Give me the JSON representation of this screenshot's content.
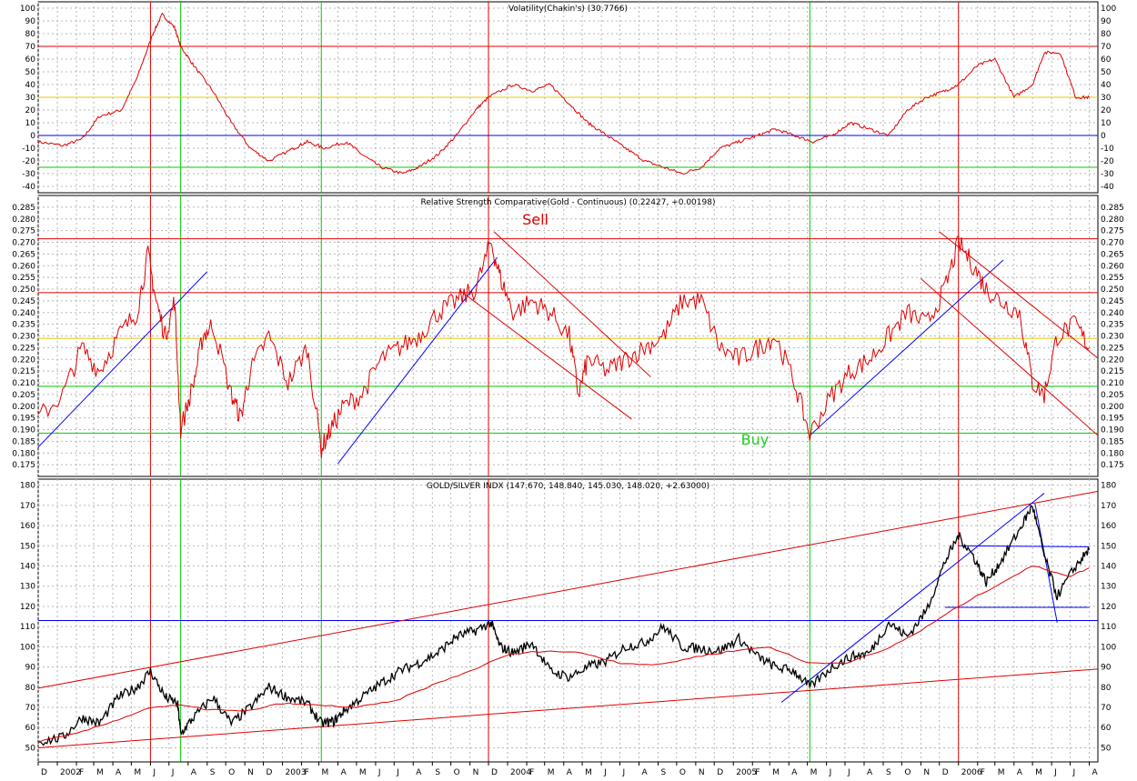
{
  "colors": {
    "background": "#ffffff",
    "grid": "#b8b8b8",
    "red": "#e00000",
    "green": "#00cc00",
    "blue": "#0000ff",
    "yellow": "#e8c800",
    "black": "#000000",
    "sell_text": "#e00000",
    "buy_text": "#22cc22"
  },
  "x_axis": {
    "date_range": [
      "2001-12-01",
      "2006-08-15"
    ],
    "month_ticks": [
      {
        "date": "2001-12-01",
        "label": "D"
      },
      {
        "date": "2002-01-01",
        "label": "2002"
      },
      {
        "date": "2002-02-01",
        "label": "F"
      },
      {
        "date": "2002-03-01",
        "label": "M"
      },
      {
        "date": "2002-04-01",
        "label": "A"
      },
      {
        "date": "2002-05-01",
        "label": "M"
      },
      {
        "date": "2002-06-01",
        "label": "J"
      },
      {
        "date": "2002-07-01",
        "label": "J"
      },
      {
        "date": "2002-08-01",
        "label": "A"
      },
      {
        "date": "2002-09-01",
        "label": "S"
      },
      {
        "date": "2002-10-01",
        "label": "O"
      },
      {
        "date": "2002-11-01",
        "label": "N"
      },
      {
        "date": "2002-12-01",
        "label": "D"
      },
      {
        "date": "2003-01-01",
        "label": "2003"
      },
      {
        "date": "2003-02-01",
        "label": "F"
      },
      {
        "date": "2003-03-01",
        "label": "M"
      },
      {
        "date": "2003-04-01",
        "label": "A"
      },
      {
        "date": "2003-05-01",
        "label": "M"
      },
      {
        "date": "2003-06-01",
        "label": "J"
      },
      {
        "date": "2003-07-01",
        "label": "J"
      },
      {
        "date": "2003-08-01",
        "label": "A"
      },
      {
        "date": "2003-09-01",
        "label": "S"
      },
      {
        "date": "2003-10-01",
        "label": "O"
      },
      {
        "date": "2003-11-01",
        "label": "N"
      },
      {
        "date": "2003-12-01",
        "label": "D"
      },
      {
        "date": "2004-01-01",
        "label": "2004"
      },
      {
        "date": "2004-02-01",
        "label": "F"
      },
      {
        "date": "2004-03-01",
        "label": "M"
      },
      {
        "date": "2004-04-01",
        "label": "A"
      },
      {
        "date": "2004-05-01",
        "label": "M"
      },
      {
        "date": "2004-06-01",
        "label": "J"
      },
      {
        "date": "2004-07-01",
        "label": "J"
      },
      {
        "date": "2004-08-01",
        "label": "A"
      },
      {
        "date": "2004-09-01",
        "label": "S"
      },
      {
        "date": "2004-10-01",
        "label": "O"
      },
      {
        "date": "2004-11-01",
        "label": "N"
      },
      {
        "date": "2004-12-01",
        "label": "D"
      },
      {
        "date": "2005-01-01",
        "label": "2005"
      },
      {
        "date": "2005-02-01",
        "label": "F"
      },
      {
        "date": "2005-03-01",
        "label": "M"
      },
      {
        "date": "2005-04-01",
        "label": "A"
      },
      {
        "date": "2005-05-01",
        "label": "M"
      },
      {
        "date": "2005-06-01",
        "label": "J"
      },
      {
        "date": "2005-07-01",
        "label": "J"
      },
      {
        "date": "2005-08-01",
        "label": "A"
      },
      {
        "date": "2005-09-01",
        "label": "S"
      },
      {
        "date": "2005-10-01",
        "label": "O"
      },
      {
        "date": "2005-11-01",
        "label": "N"
      },
      {
        "date": "2005-12-01",
        "label": "D"
      },
      {
        "date": "2006-01-01",
        "label": "2006"
      },
      {
        "date": "2006-02-01",
        "label": "F"
      },
      {
        "date": "2006-03-01",
        "label": "M"
      },
      {
        "date": "2006-04-01",
        "label": "A"
      },
      {
        "date": "2006-05-01",
        "label": "M"
      },
      {
        "date": "2006-06-01",
        "label": "J"
      },
      {
        "date": "2006-07-01",
        "label": "J"
      },
      {
        "date": "2006-08-01",
        "label": "A"
      }
    ]
  },
  "markers": {
    "red_vertical_dates": [
      "2002-06-01",
      "2003-12-01",
      "2006-01-01"
    ],
    "green_vertical_dates": [
      "2002-07-20",
      "2003-03-05",
      "2005-05-05"
    ]
  },
  "chart_data": [
    {
      "type": "line",
      "title": "Volatility(Chakin's) (30.7766)",
      "ylim": [
        -45,
        105
      ],
      "y_ticks": [
        -40,
        -30,
        -20,
        -10,
        0,
        10,
        20,
        30,
        40,
        50,
        60,
        70,
        80,
        90,
        100
      ],
      "grid": true,
      "hlines": [
        {
          "y": 70,
          "color": "red"
        },
        {
          "y": 30,
          "color": "yellow"
        },
        {
          "y": 0,
          "color": "blue"
        },
        {
          "y": -25,
          "color": "green"
        }
      ],
      "series": [
        {
          "color": "red",
          "x": [
            "2001-12-01",
            "2002-01-10",
            "2002-02-10",
            "2002-03-10",
            "2002-04-15",
            "2002-05-10",
            "2002-06-05",
            "2002-06-20",
            "2002-07-10",
            "2002-07-20",
            "2002-08-10",
            "2002-09-10",
            "2002-10-10",
            "2002-11-10",
            "2002-12-10",
            "2003-01-20",
            "2003-02-10",
            "2003-03-10",
            "2003-04-15",
            "2003-05-10",
            "2003-06-10",
            "2003-07-15",
            "2003-08-10",
            "2003-09-10",
            "2003-10-10",
            "2003-11-10",
            "2003-12-01",
            "2004-01-10",
            "2004-02-10",
            "2004-03-10",
            "2004-04-10",
            "2004-05-10",
            "2004-06-10",
            "2004-07-10",
            "2004-08-10",
            "2004-09-10",
            "2004-10-10",
            "2004-11-10",
            "2004-12-10",
            "2005-01-10",
            "2005-02-10",
            "2005-03-10",
            "2005-04-10",
            "2005-05-10",
            "2005-06-10",
            "2005-07-10",
            "2005-08-10",
            "2005-09-10",
            "2005-10-10",
            "2005-11-10",
            "2005-12-10",
            "2006-01-01",
            "2006-02-01",
            "2006-03-01",
            "2006-04-01",
            "2006-05-01",
            "2006-05-20",
            "2006-06-15",
            "2006-07-10",
            "2006-08-01"
          ],
          "values": [
            -5,
            -8,
            -3,
            15,
            20,
            45,
            80,
            95,
            85,
            70,
            55,
            35,
            10,
            -10,
            -20,
            -10,
            -5,
            -10,
            -5,
            -15,
            -25,
            -30,
            -25,
            -15,
            0,
            20,
            30,
            40,
            35,
            40,
            25,
            10,
            0,
            -10,
            -20,
            -25,
            -30,
            -25,
            -10,
            -5,
            0,
            5,
            0,
            -5,
            0,
            10,
            5,
            0,
            20,
            30,
            35,
            40,
            55,
            60,
            30,
            40,
            65,
            65,
            30,
            30
          ]
        }
      ]
    },
    {
      "type": "line",
      "title": "Relative Strength Comparative(Gold - Continuous) (0.22427, +0.00198)",
      "ylim": [
        0.17,
        0.29
      ],
      "y_ticks": [
        0.175,
        0.18,
        0.185,
        0.19,
        0.195,
        0.2,
        0.205,
        0.21,
        0.215,
        0.22,
        0.225,
        0.23,
        0.235,
        0.24,
        0.245,
        0.25,
        0.255,
        0.26,
        0.265,
        0.27,
        0.275,
        0.28,
        0.285
      ],
      "grid": true,
      "hlines": [
        {
          "y": 0.2715,
          "color": "red"
        },
        {
          "y": 0.2485,
          "color": "red"
        },
        {
          "y": 0.229,
          "color": "yellow"
        },
        {
          "y": 0.2085,
          "color": "green"
        },
        {
          "y": 0.1885,
          "color": "green"
        }
      ],
      "annotations": [
        {
          "text": "Sell",
          "x": "2004-02-15",
          "y": 0.2775,
          "color": "red"
        },
        {
          "text": "Buy",
          "x": "2005-02-05",
          "y": 0.1835,
          "color": "green"
        }
      ],
      "trend_lines": [
        {
          "x1": "2001-12-01",
          "y1": 0.1825,
          "x2": "2002-09-01",
          "y2": 0.2575,
          "color": "blue"
        },
        {
          "x1": "2003-04-01",
          "y1": 0.1755,
          "x2": "2003-12-15",
          "y2": 0.2635,
          "color": "blue"
        },
        {
          "x1": "2005-05-05",
          "y1": 0.1875,
          "x2": "2006-03-15",
          "y2": 0.2625,
          "color": "blue"
        },
        {
          "x1": "2003-12-10",
          "y1": 0.2745,
          "x2": "2004-08-20",
          "y2": 0.2125,
          "color": "red"
        },
        {
          "x1": "2003-10-15",
          "y1": 0.2495,
          "x2": "2004-07-20",
          "y2": 0.1945,
          "color": "red"
        },
        {
          "x1": "2005-12-01",
          "y1": 0.2745,
          "x2": "2006-08-15",
          "y2": 0.2205,
          "color": "red"
        },
        {
          "x1": "2005-11-01",
          "y1": 0.2545,
          "x2": "2006-08-15",
          "y2": 0.1875,
          "color": "red"
        }
      ],
      "series": [
        {
          "color": "red",
          "x": [
            "2001-12-01",
            "2002-01-10",
            "2002-02-10",
            "2002-03-10",
            "2002-04-10",
            "2002-05-10",
            "2002-05-28",
            "2002-06-10",
            "2002-06-25",
            "2002-07-10",
            "2002-07-20",
            "2002-08-10",
            "2002-08-25",
            "2002-09-10",
            "2002-10-10",
            "2002-10-25",
            "2002-11-10",
            "2002-12-10",
            "2003-01-10",
            "2003-02-10",
            "2003-03-05",
            "2003-03-20",
            "2003-04-10",
            "2003-05-10",
            "2003-06-10",
            "2003-07-10",
            "2003-08-10",
            "2003-09-10",
            "2003-10-10",
            "2003-11-10",
            "2003-12-05",
            "2003-12-20",
            "2004-01-10",
            "2004-02-10",
            "2004-03-10",
            "2004-04-10",
            "2004-04-25",
            "2004-05-10",
            "2004-06-10",
            "2004-07-10",
            "2004-08-10",
            "2004-09-10",
            "2004-10-10",
            "2004-11-10",
            "2004-12-10",
            "2005-01-10",
            "2005-02-10",
            "2005-03-10",
            "2005-04-10",
            "2005-05-05",
            "2005-06-10",
            "2005-07-10",
            "2005-08-10",
            "2005-09-10",
            "2005-10-10",
            "2005-11-10",
            "2005-12-10",
            "2006-01-01",
            "2006-01-25",
            "2006-02-15",
            "2006-03-10",
            "2006-04-10",
            "2006-05-01",
            "2006-05-20",
            "2006-06-10",
            "2006-07-10",
            "2006-08-01"
          ],
          "values": [
            0.195,
            0.205,
            0.225,
            0.215,
            0.23,
            0.24,
            0.265,
            0.245,
            0.23,
            0.245,
            0.19,
            0.21,
            0.23,
            0.235,
            0.205,
            0.195,
            0.215,
            0.23,
            0.21,
            0.225,
            0.182,
            0.19,
            0.2,
            0.205,
            0.22,
            0.225,
            0.23,
            0.24,
            0.245,
            0.25,
            0.27,
            0.255,
            0.24,
            0.245,
            0.24,
            0.23,
            0.205,
            0.22,
            0.215,
            0.22,
            0.225,
            0.23,
            0.245,
            0.245,
            0.225,
            0.22,
            0.225,
            0.23,
            0.21,
            0.188,
            0.205,
            0.215,
            0.22,
            0.23,
            0.24,
            0.235,
            0.25,
            0.27,
            0.26,
            0.25,
            0.245,
            0.24,
            0.21,
            0.205,
            0.23,
            0.235,
            0.225
          ]
        }
      ]
    },
    {
      "type": "line",
      "title": "GOLD/SILVER INDX (147.670, 148.840, 145.030, 148.020, +2.63000)",
      "ylim": [
        43,
        183
      ],
      "y_ticks": [
        50,
        60,
        70,
        80,
        90,
        100,
        110,
        120,
        130,
        140,
        150,
        160,
        170,
        180
      ],
      "grid": true,
      "hlines": [
        {
          "y": 113,
          "color": "blue"
        }
      ],
      "segments": [
        {
          "x1": "2001-12-01",
          "y1": 79.5,
          "x2": "2006-08-15",
          "y2": 177,
          "color": "red"
        },
        {
          "x1": "2001-12-01",
          "y1": 50,
          "x2": "2006-08-15",
          "y2": 89,
          "color": "red"
        },
        {
          "x1": "2005-03-20",
          "y1": 72.5,
          "x2": "2006-05-20",
          "y2": 176,
          "color": "blue"
        },
        {
          "x1": "2006-01-01",
          "y1": 150,
          "x2": "2006-08-01",
          "y2": 149.5,
          "color": "blue"
        },
        {
          "x1": "2005-12-10",
          "y1": 119.5,
          "x2": "2006-08-01",
          "y2": 119.5,
          "color": "blue"
        },
        {
          "x1": "2006-05-05",
          "y1": 171,
          "x2": "2006-06-10",
          "y2": 112,
          "color": "blue"
        }
      ],
      "series": [
        {
          "name": "price",
          "color": "black",
          "x": [
            "2001-12-01",
            "2002-01-10",
            "2002-02-10",
            "2002-03-10",
            "2002-04-10",
            "2002-05-10",
            "2002-06-01",
            "2002-06-25",
            "2002-07-15",
            "2002-07-20",
            "2002-08-10",
            "2002-09-10",
            "2002-10-10",
            "2002-11-10",
            "2002-12-10",
            "2003-01-10",
            "2003-02-10",
            "2003-03-05",
            "2003-03-25",
            "2003-04-10",
            "2003-05-10",
            "2003-06-10",
            "2003-07-10",
            "2003-08-10",
            "2003-09-10",
            "2003-10-10",
            "2003-11-10",
            "2003-12-05",
            "2003-12-20",
            "2004-01-10",
            "2004-02-10",
            "2004-03-10",
            "2004-04-10",
            "2004-05-10",
            "2004-06-10",
            "2004-07-10",
            "2004-08-10",
            "2004-09-10",
            "2004-10-10",
            "2004-11-10",
            "2004-12-10",
            "2005-01-10",
            "2005-02-10",
            "2005-03-10",
            "2005-04-10",
            "2005-05-05",
            "2005-06-10",
            "2005-07-10",
            "2005-08-10",
            "2005-09-10",
            "2005-10-10",
            "2005-11-10",
            "2005-12-10",
            "2006-01-01",
            "2006-01-25",
            "2006-02-15",
            "2006-03-10",
            "2006-04-10",
            "2006-05-01",
            "2006-05-20",
            "2006-06-10",
            "2006-07-10",
            "2006-08-01"
          ],
          "values": [
            53,
            55,
            65,
            62,
            75,
            80,
            88,
            75,
            72,
            57,
            65,
            75,
            62,
            70,
            80,
            75,
            72,
            62,
            63,
            68,
            75,
            82,
            88,
            92,
            97,
            105,
            108,
            112,
            100,
            97,
            102,
            88,
            85,
            90,
            93,
            100,
            102,
            110,
            100,
            99,
            98,
            104,
            95,
            90,
            88,
            80,
            90,
            95,
            97,
            112,
            105,
            118,
            142,
            155,
            145,
            132,
            142,
            158,
            170,
            145,
            125,
            140,
            148
          ]
        },
        {
          "name": "moving-average",
          "color": "red",
          "x": [
            "2001-12-01",
            "2002-02-01",
            "2002-04-01",
            "2002-06-01",
            "2002-07-20",
            "2002-09-01",
            "2002-11-01",
            "2003-01-01",
            "2003-03-01",
            "2003-05-01",
            "2003-07-01",
            "2003-09-01",
            "2003-11-01",
            "2004-01-01",
            "2004-03-01",
            "2004-05-01",
            "2004-07-01",
            "2004-09-01",
            "2004-11-01",
            "2005-01-01",
            "2005-03-01",
            "2005-05-01",
            "2005-07-01",
            "2005-09-01",
            "2005-11-01",
            "2006-01-01",
            "2006-03-01",
            "2006-05-01",
            "2006-07-01",
            "2006-08-01"
          ],
          "values": [
            53,
            57,
            63,
            70,
            71,
            69,
            68,
            72,
            71,
            70,
            73,
            81,
            88,
            96,
            98,
            97,
            92,
            91,
            95,
            98,
            100,
            92,
            92,
            98,
            108,
            120,
            130,
            140,
            135,
            139
          ]
        }
      ]
    }
  ]
}
